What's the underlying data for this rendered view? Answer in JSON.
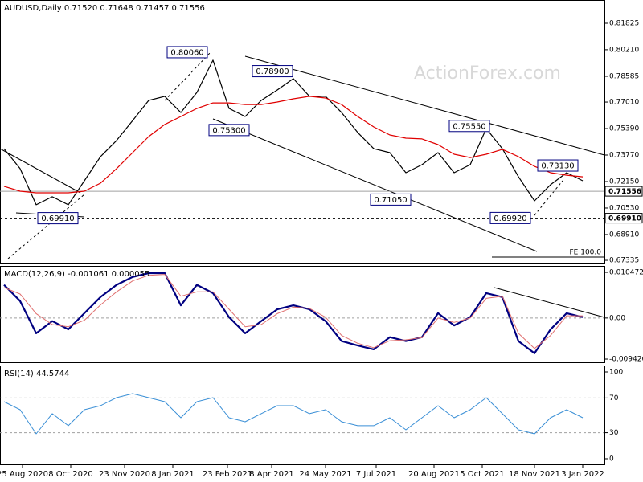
{
  "chart_data": [
    {
      "type": "line",
      "title": "AUDUSD,Daily  0.71520 0.71648 0.71457 0.71556",
      "watermark": "ActionForex.com",
      "xlim": [
        -0.25,
        37.35
      ],
      "ylim": [
        0.6714,
        0.8325
      ],
      "yticks": [
        0.81825,
        {
          "value": 0.8021,
          "label": "0.80210"
        },
        0.78585,
        {
          "value": 0.7701,
          "label": "0.77010"
        },
        {
          "value": 0.7539,
          "label": "0.75390"
        },
        {
          "value": 0.7377,
          "label": "0.73770"
        },
        {
          "value": 0.7215,
          "label": "0.72150"
        },
        {
          "value": 0.7053,
          "label": "0.70530"
        },
        {
          "value": 0.6891,
          "label": "0.68910"
        },
        0.67335
      ],
      "series": [
        {
          "color": "#000000",
          "values": [
            0.7416,
            0.7294,
            0.7073,
            0.7122,
            0.7073,
            0.722,
            0.7367,
            0.7466,
            0.7588,
            0.7711,
            0.7736,
            0.7637,
            0.776,
            0.7957,
            0.7662,
            0.7613,
            0.7711,
            0.7775,
            0.7844,
            0.7736,
            0.7736,
            0.7637,
            0.7515,
            0.7416,
            0.7392,
            0.7269,
            0.7318,
            0.7392,
            0.7269,
            0.7318,
            0.7539,
            0.7416,
            0.7245,
            0.7097,
            0.7196,
            0.7269,
            0.722
          ]
        },
        {
          "color": "#e00000",
          "values": [
            0.7186,
            0.7156,
            0.7146,
            0.7146,
            0.7146,
            0.7156,
            0.7205,
            0.7294,
            0.7392,
            0.749,
            0.7564,
            0.7613,
            0.7662,
            0.7696,
            0.7696,
            0.7686,
            0.7686,
            0.7701,
            0.7721,
            0.7736,
            0.7726,
            0.7686,
            0.7613,
            0.7549,
            0.75,
            0.748,
            0.7476,
            0.7441,
            0.7382,
            0.7362,
            0.7382,
            0.7412,
            0.7367,
            0.7308,
            0.7269,
            0.7254,
            0.7244
          ]
        }
      ],
      "annotations": [
        {
          "label": "0.80060",
          "value": 0.8006,
          "x": 10.15
        },
        {
          "label": "0.78900",
          "value": 0.789,
          "x": 15.45
        },
        {
          "label": "0.75300",
          "value": 0.753,
          "x": 12.75
        },
        {
          "label": "0.71050",
          "value": 0.7105,
          "x": 22.8
        },
        {
          "label": "0.75550",
          "value": 0.7555,
          "x": 27.7
        },
        {
          "label": "0.73130",
          "value": 0.7313,
          "x": 33.2
        },
        {
          "label": "0.69920",
          "value": 0.6992,
          "x": 30.25
        },
        {
          "label": "0.69910",
          "value": 0.6991,
          "x": 2.1
        }
      ],
      "levels": [
        {
          "label": "0.71556",
          "value": 0.71556,
          "color": "#a0a0a0",
          "dashed": false
        },
        {
          "label": "0.69910",
          "value": 0.6991,
          "color": "#000000",
          "dashed": true
        }
      ],
      "fe": {
        "label": "FE 100.0",
        "value": 0.6753,
        "x": 30.35
      }
    },
    {
      "type": "line",
      "title": "MACD(12,26,9) -0.001061 0.000055",
      "xlim": [
        -0.25,
        37.35
      ],
      "ylim": [
        -0.01016,
        0.01195
      ],
      "yticks": [
        0.010472,
        {
          "value": 0,
          "label": "0.00"
        },
        -0.009426
      ],
      "series": [
        {
          "color": "#000080",
          "width": 2.2,
          "values": [
            0.0076,
            0.0039,
            -0.0035,
            -0.0007,
            -0.0026,
            0.0011,
            0.0048,
            0.0076,
            0.0094,
            0.0103,
            0.0103,
            0.0029,
            0.0076,
            0.0057,
            0.0002,
            -0.0035,
            -0.0007,
            0.002,
            0.0029,
            0.002,
            -0.0007,
            -0.0053,
            -0.0063,
            -0.0072,
            -0.0044,
            -0.0053,
            -0.0044,
            0.0011,
            -0.0017,
            0.0002,
            0.0057,
            0.0048,
            -0.0053,
            -0.0081,
            -0.0026,
            0.0011,
            0.0002
          ]
        },
        {
          "color": "#e07070",
          "width": 1,
          "values": [
            0.007,
            0.0055,
            0.001,
            -0.0015,
            -0.002,
            -0.0005,
            0.003,
            0.006,
            0.0085,
            0.0098,
            0.01,
            0.005,
            0.006,
            0.006,
            0.002,
            -0.002,
            -0.0015,
            0.001,
            0.0025,
            0.0022,
            0.0002,
            -0.004,
            -0.0058,
            -0.0068,
            -0.0052,
            -0.005,
            -0.0045,
            0.0,
            -0.001,
            0.0,
            0.0045,
            0.005,
            -0.0035,
            -0.007,
            -0.004,
            0.0005,
            0.0005
          ]
        }
      ],
      "levels": [
        {
          "value": 0,
          "color": "#a0a0a0",
          "dashed": true
        }
      ]
    },
    {
      "type": "line",
      "title": "RSI(14) 44.5744",
      "xlim": [
        -0.25,
        37.35
      ],
      "ylim": [
        -6.5,
        107.4
      ],
      "yticks": [
        100,
        70,
        30,
        0
      ],
      "xticks": [
        {
          "value": 1.15,
          "label": "25 Aug 2020"
        },
        {
          "value": 4.15,
          "label": "8 Oct 2020"
        },
        {
          "value": 7.5,
          "label": "23 Nov 2020"
        },
        {
          "value": 10.5,
          "label": "8 Jan 2021"
        },
        {
          "value": 13.9,
          "label": "23 Feb 2021"
        },
        {
          "value": 16.65,
          "label": "8 Apr 2021"
        },
        {
          "value": 20,
          "label": "24 May 2021"
        },
        {
          "value": 23.15,
          "label": "7 Jul 2021"
        },
        {
          "value": 26.75,
          "label": "20 Aug 2021"
        },
        {
          "value": 29.75,
          "label": "5 Oct 2021"
        },
        {
          "value": 33,
          "label": "18 Nov 2021"
        },
        {
          "value": 36,
          "label": "3 Jan 2022"
        }
      ],
      "series": [
        {
          "color": "#3a8fd6",
          "width": 1,
          "values": [
            65.7,
            56.5,
            28.7,
            51.9,
            38,
            56.5,
            61.1,
            70.4,
            75,
            70.4,
            65.7,
            47.2,
            65.7,
            70.4,
            47.2,
            42.6,
            51.9,
            61.1,
            61.1,
            51.9,
            56.5,
            42.6,
            38,
            38,
            47.2,
            33.3,
            47.2,
            61.1,
            47.2,
            56.5,
            70.4,
            51.9,
            33.3,
            28.7,
            47.2,
            56.5,
            47.2
          ]
        }
      ],
      "levels": [
        {
          "value": 70,
          "color": "#a0a0a0",
          "dashed": true
        },
        {
          "value": 30,
          "color": "#a0a0a0",
          "dashed": true
        }
      ]
    }
  ]
}
